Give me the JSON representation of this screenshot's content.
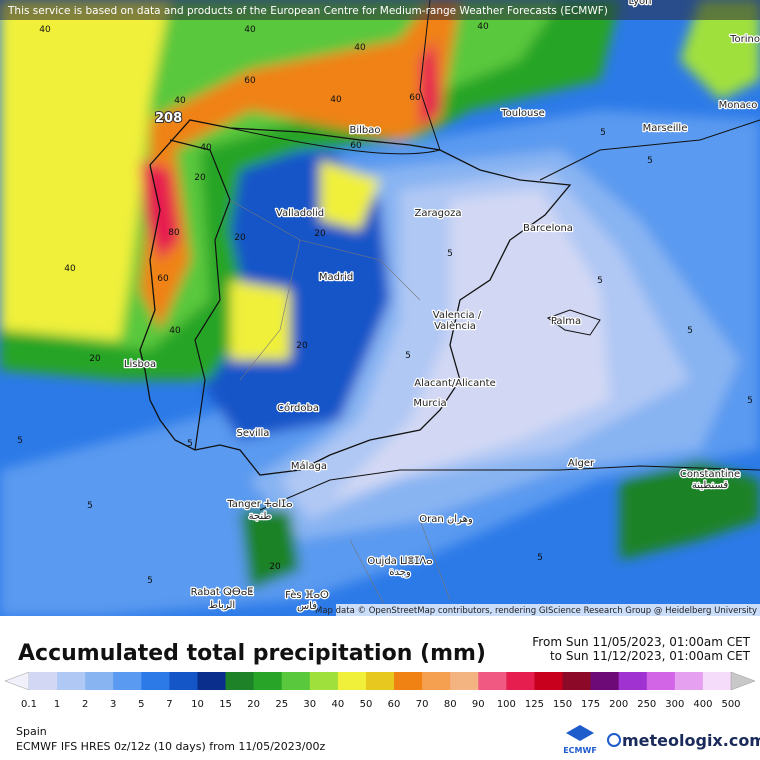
{
  "banner": "This service is based on data and products of the European Centre for Medium-range Weather Forecasts (ECMWF)",
  "map": {
    "max_label": "208",
    "attribution": "Map data © OpenStreetMap contributors, rendering GIScience Research Group @ Heidelberg University",
    "cities": [
      "Lyon",
      "Torino",
      "Monaco",
      "Toulouse",
      "Marseille",
      "Bilbao",
      "Valladolid",
      "Zaragoza",
      "Barcelona",
      "Madrid",
      "Valencia /",
      "València",
      "Palma",
      "Lisboa",
      "Alacant/Alicante",
      "Murcia",
      "Córdoba",
      "Sevilla",
      "Málaga",
      "Alger",
      "Constantine",
      "قسنطينة",
      "Tanger ⵜⴰⵏⵊⴰ",
      "طنجة",
      "Oran وهران",
      "Oujda ⵡⴻⵊⴷⴰ",
      "وجدة",
      "Rabat ⵕⴱⴰⵟ",
      "الرباط",
      "Fès ⴼⴰⵙ",
      "فاس"
    ],
    "contour_labels": [
      "40",
      "40",
      "40",
      "40",
      "40",
      "40",
      "40",
      "40",
      "40",
      "60",
      "60",
      "60",
      "60",
      "80",
      "20",
      "20",
      "20",
      "20",
      "20",
      "20",
      "5",
      "5",
      "5",
      "5",
      "5",
      "5",
      "5",
      "5",
      "5",
      "5",
      "5",
      "5"
    ]
  },
  "header": {
    "title": "Accumulated total precipitation (mm)",
    "from": "From Sun 11/05/2023, 01:00am CET",
    "to": "to Sun 11/12/2023, 01:00am CET"
  },
  "legend": {
    "labels": [
      "0.1",
      "1",
      "2",
      "3",
      "5",
      "7",
      "10",
      "15",
      "20",
      "25",
      "30",
      "40",
      "50",
      "60",
      "70",
      "80",
      "90",
      "100",
      "125",
      "150",
      "175",
      "200",
      "250",
      "300",
      "400",
      "500"
    ],
    "below_color": "#f0f0fa",
    "colors": [
      "#d2d8f4",
      "#b0c8f4",
      "#88b4f2",
      "#5a9af0",
      "#2c7ae8",
      "#1455c8",
      "#0a2e8c",
      "#1e8228",
      "#28a428",
      "#5ac83c",
      "#a0e03c",
      "#f0f03a",
      "#e6c81e",
      "#f08214",
      "#f4a050",
      "#f4b482",
      "#f05a82",
      "#e61e50",
      "#c8001e",
      "#8c0a28",
      "#6e0a78",
      "#a032d2",
      "#d264e6",
      "#e6a0f0",
      "#f5dcfa"
    ],
    "above_color": "#c8c8c8"
  },
  "footer": {
    "region": "Spain",
    "model": "ECMWF IFS HRES 0z/12z (10 days) from 11/05/2023/00z",
    "logo": "ECMWF",
    "brand": "meteologix.com"
  }
}
